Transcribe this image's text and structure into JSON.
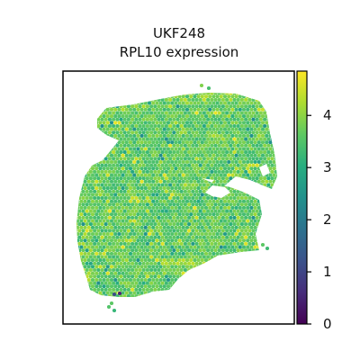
{
  "chart_data": {
    "type": "heatmap",
    "title_line1": "UKF248",
    "title_line2": "RPL10 expression",
    "xlabel": "",
    "ylabel": "",
    "grid": false,
    "colormap": "viridis",
    "colorbar": {
      "position": "right",
      "range": [
        0,
        4.85
      ],
      "ticks": [
        0,
        1,
        2,
        3,
        4
      ],
      "tick_labels": [
        "0",
        "1",
        "2",
        "3",
        "4"
      ]
    },
    "dominant_value_range": [
      3.0,
      4.0
    ],
    "high_value_regions": [
      "upper edge",
      "lower band"
    ],
    "low_value_spots": [
      "lower left"
    ]
  },
  "colors": {
    "axes_edge": "#000000",
    "background": "#ffffff"
  }
}
